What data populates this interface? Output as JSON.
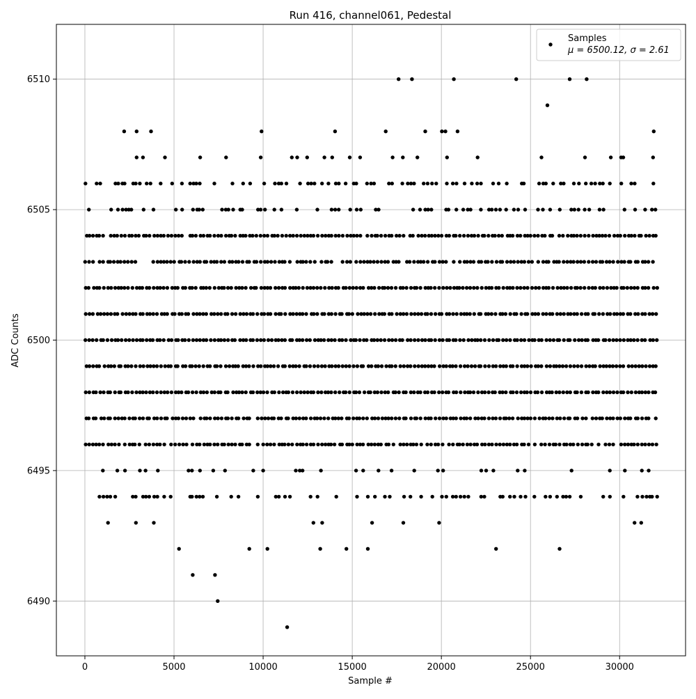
{
  "chart_data": {
    "type": "scatter",
    "title": "Run 416, channel061, Pedestal",
    "xlabel": "Sample #",
    "ylabel": "ADC Counts",
    "xlim": [
      -1600,
      33700
    ],
    "ylim": [
      6487.9,
      6512.1
    ],
    "x_ticks": [
      0,
      5000,
      10000,
      15000,
      20000,
      25000,
      30000
    ],
    "y_ticks": [
      6490,
      6495,
      6500,
      6505,
      6510
    ],
    "grid": true,
    "legend_position": "top-right",
    "series": [
      {
        "name": "Samples",
        "color": "#000000",
        "marker": "circle",
        "sample_count": 32200,
        "x_range": [
          0,
          32200
        ],
        "level_occupancy": [
          {
            "y": 6504,
            "density": 0.97
          },
          {
            "y": 6503,
            "density": 0.93
          },
          {
            "y": 6502,
            "density": 1.0
          },
          {
            "y": 6501,
            "density": 1.0
          },
          {
            "y": 6500,
            "density": 1.0
          },
          {
            "y": 6499,
            "density": 0.99
          },
          {
            "y": 6498,
            "density": 1.0
          },
          {
            "y": 6497,
            "density": 0.97
          },
          {
            "y": 6496,
            "density": 0.88
          },
          {
            "y": 6506,
            "density": 0.55
          },
          {
            "y": 6505,
            "density": 0.45
          },
          {
            "y": 6495,
            "density": 0.25
          },
          {
            "y": 6494,
            "density": 0.45
          },
          {
            "y": 6507,
            "density": 0.12
          },
          {
            "y": 6493,
            "density": 0.09
          },
          {
            "y": 6508,
            "density": 0.06
          },
          {
            "y": 6492,
            "density": 0.04
          }
        ],
        "sparse_points": [
          {
            "x": 17600,
            "y": 6510
          },
          {
            "x": 18350,
            "y": 6510
          },
          {
            "x": 20700,
            "y": 6510
          },
          {
            "x": 24200,
            "y": 6510
          },
          {
            "x": 27200,
            "y": 6510
          },
          {
            "x": 28150,
            "y": 6510
          },
          {
            "x": 25950,
            "y": 6509
          },
          {
            "x": 6050,
            "y": 6491
          },
          {
            "x": 7300,
            "y": 6491
          },
          {
            "x": 7450,
            "y": 6490
          },
          {
            "x": 11350,
            "y": 6489
          }
        ]
      }
    ],
    "legend": {
      "label": "Samples",
      "stats": "μ = 6500.12, σ = 2.61"
    }
  }
}
